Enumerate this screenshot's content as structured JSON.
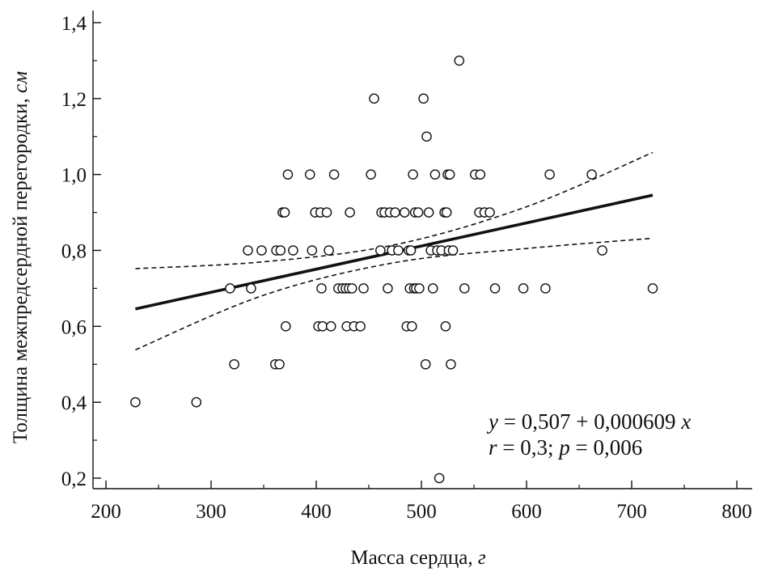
{
  "chart_data": {
    "type": "scatter",
    "xlabel": "Масса сердца, ",
    "xlabel_unit": "г",
    "ylabel": "Толщина межпредсердной перегородки, ",
    "ylabel_unit": "см",
    "xlim": [
      200,
      800
    ],
    "ylim": [
      0.2,
      1.4
    ],
    "x_ticks": [
      200,
      300,
      400,
      500,
      600,
      700,
      800
    ],
    "x_tick_labels": [
      "200",
      "300",
      "400",
      "500",
      "600",
      "700",
      "800"
    ],
    "y_ticks": [
      0.2,
      0.4,
      0.6,
      0.8,
      1.0,
      1.2,
      1.4
    ],
    "y_tick_labels": [
      "0,2",
      "0,4",
      "0,6",
      "0,8",
      "1,0",
      "1,2",
      "1,4"
    ],
    "grid": false,
    "annotation": {
      "eq_y": "y",
      "eq_rest": " = 0,507 + 0,000609 ",
      "eq_x": "x",
      "r_var": "r",
      "r_rest": " = 0,3; ",
      "p_var": "p",
      "p_rest": " = 0,006"
    },
    "regression": {
      "intercept": 0.507,
      "slope": 0.000609,
      "x_range": [
        228,
        720
      ]
    },
    "confidence_band": {
      "upper": [
        [
          228,
          0.752
        ],
        [
          350,
          0.77
        ],
        [
          475,
          0.815
        ],
        [
          600,
          0.915
        ],
        [
          720,
          1.058
        ]
      ],
      "lower": [
        [
          228,
          0.538
        ],
        [
          350,
          0.682
        ],
        [
          475,
          0.768
        ],
        [
          600,
          0.805
        ],
        [
          720,
          0.832
        ]
      ]
    },
    "points": [
      [
        228,
        0.4
      ],
      [
        286,
        0.4
      ],
      [
        318,
        0.7
      ],
      [
        322,
        0.5
      ],
      [
        335,
        0.8
      ],
      [
        338,
        0.7
      ],
      [
        348,
        0.8
      ],
      [
        361,
        0.5
      ],
      [
        362,
        0.8
      ],
      [
        365,
        0.5
      ],
      [
        366,
        0.8
      ],
      [
        368,
        0.9
      ],
      [
        370,
        0.9
      ],
      [
        371,
        0.6
      ],
      [
        373,
        1.0
      ],
      [
        378,
        0.8
      ],
      [
        394,
        1.0
      ],
      [
        396,
        0.8
      ],
      [
        399,
        0.9
      ],
      [
        402,
        0.6
      ],
      [
        404,
        0.9
      ],
      [
        405,
        0.7
      ],
      [
        406,
        0.6
      ],
      [
        410,
        0.9
      ],
      [
        412,
        0.8
      ],
      [
        414,
        0.6
      ],
      [
        417,
        1.0
      ],
      [
        421,
        0.7
      ],
      [
        425,
        0.7
      ],
      [
        428,
        0.7
      ],
      [
        429,
        0.6
      ],
      [
        431,
        0.7
      ],
      [
        432,
        0.9
      ],
      [
        434,
        0.7
      ],
      [
        436,
        0.6
      ],
      [
        442,
        0.6
      ],
      [
        445,
        0.7
      ],
      [
        452,
        1.0
      ],
      [
        455,
        1.2
      ],
      [
        461,
        0.8
      ],
      [
        462,
        0.9
      ],
      [
        465,
        0.9
      ],
      [
        468,
        0.7
      ],
      [
        470,
        0.9
      ],
      [
        472,
        0.8
      ],
      [
        475,
        0.9
      ],
      [
        478,
        0.8
      ],
      [
        484,
        0.9
      ],
      [
        486,
        0.6
      ],
      [
        488,
        0.8
      ],
      [
        489,
        0.7
      ],
      [
        490,
        0.8
      ],
      [
        491,
        0.6
      ],
      [
        492,
        1.0
      ],
      [
        493,
        0.7
      ],
      [
        494,
        0.9
      ],
      [
        495,
        0.7
      ],
      [
        497,
        0.9
      ],
      [
        498,
        0.7
      ],
      [
        502,
        1.2
      ],
      [
        504,
        0.5
      ],
      [
        505,
        1.1
      ],
      [
        507,
        0.9
      ],
      [
        509,
        0.8
      ],
      [
        511,
        0.7
      ],
      [
        513,
        1.0
      ],
      [
        515,
        0.8
      ],
      [
        517,
        0.2
      ],
      [
        519,
        0.8
      ],
      [
        522,
        0.9
      ],
      [
        523,
        0.6
      ],
      [
        524,
        0.9
      ],
      [
        525,
        1.0
      ],
      [
        526,
        0.8
      ],
      [
        527,
        1.0
      ],
      [
        528,
        0.5
      ],
      [
        530,
        0.8
      ],
      [
        536,
        1.3
      ],
      [
        541,
        0.7
      ],
      [
        551,
        1.0
      ],
      [
        555,
        0.9
      ],
      [
        556,
        1.0
      ],
      [
        560,
        0.9
      ],
      [
        565,
        0.9
      ],
      [
        570,
        0.7
      ],
      [
        597,
        0.7
      ],
      [
        618,
        0.7
      ],
      [
        622,
        1.0
      ],
      [
        662,
        1.0
      ],
      [
        672,
        0.8
      ],
      [
        720,
        0.7
      ]
    ]
  },
  "colors": {
    "ink": "#111111",
    "marker_fill": "#ffffff"
  }
}
